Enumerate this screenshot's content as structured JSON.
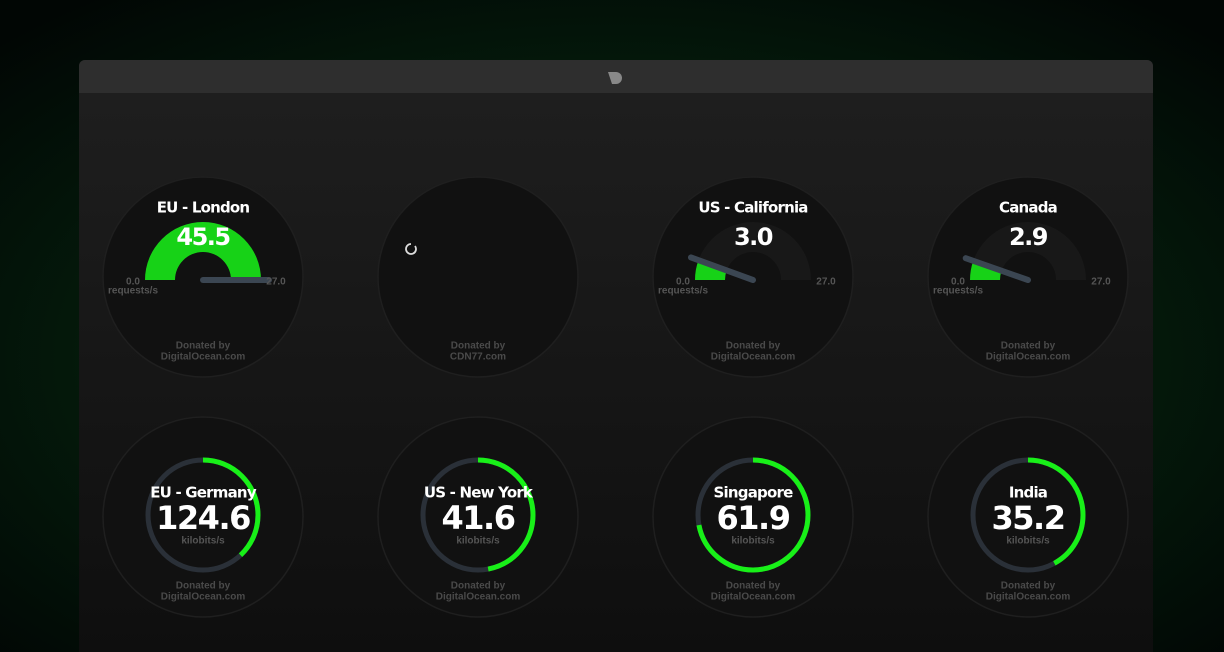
{
  "speed_gauges": [
    {
      "title": "EU - London",
      "value": 45.5,
      "min": {
        "value": 0,
        "label": "0.0"
      },
      "max": {
        "value": 27,
        "label": "27.0"
      },
      "unit": "requests/s",
      "donated_by": "Donated by",
      "donor": "DigitalOcean.com"
    },
    {
      "loading": true,
      "donated_by": "Donated by",
      "donor": "CDN77.com"
    },
    {
      "title": "US - California",
      "value": 3,
      "value_label": "3.0",
      "min": {
        "value": 0,
        "label": "0.0"
      },
      "max": {
        "value": 27,
        "label": "27.0"
      },
      "unit": "requests/s",
      "donated_by": "Donated by",
      "donor": "DigitalOcean.com"
    },
    {
      "title": "Canada",
      "value": 2.9,
      "min": {
        "value": 0,
        "label": "0.0"
      },
      "max": {
        "value": 27,
        "label": "27.0"
      },
      "unit": "requests/s",
      "donated_by": "Donated by",
      "donor": "DigitalOcean.com"
    }
  ],
  "ring_gauges": [
    {
      "title": "EU - Germany",
      "value": 124.6,
      "ring_fill": 38,
      "unit": "kilobits/s",
      "donated_by": "Donated by",
      "donor": "DigitalOcean.com"
    },
    {
      "title": "US - New York",
      "value": 41.6,
      "ring_fill": 47,
      "unit": "kilobits/s",
      "donated_by": "Donated by",
      "donor": "DigitalOcean.com"
    },
    {
      "title": "Singapore",
      "value": 61.9,
      "ring_fill": 72,
      "unit": "kilobits/s",
      "donated_by": "Donated by",
      "donor": "DigitalOcean.com"
    },
    {
      "title": "India",
      "value": 35.2,
      "ring_fill": 42,
      "unit": "kilobits/s",
      "donated_by": "Donated by",
      "donor": "DigitalOcean.com"
    }
  ]
}
